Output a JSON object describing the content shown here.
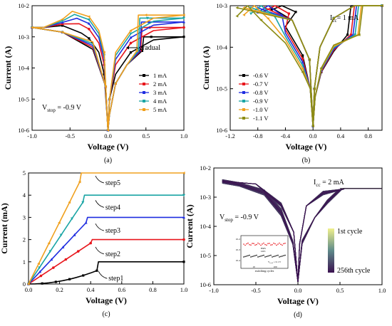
{
  "colors": {
    "1 mA": "#000000",
    "2 mA": "#e8151b",
    "3 mA": "#1f2de0",
    "4 mA": "#1aa5a5",
    "5 mA": "#f0a01e",
    "-0.6 V": "#000000",
    "-0.7 V": "#e8151b",
    "-0.8 V": "#1f2de0",
    "-0.9 V": "#1aa5a5",
    "-1.0 V": "#f0a01e",
    "-1.1 V": "#8c8c14",
    "viridis_start": "#f0f08c",
    "viridis_mid": "#5f8a8a",
    "viridis_end": "#3b1250"
  },
  "chart_data": [
    {
      "panel": "a",
      "type": "line",
      "caption": "(a)",
      "xlabel": "Voltage (V)",
      "ylabel": "Current (A)",
      "xlim": [
        -1.0,
        1.0
      ],
      "ylim_log10": [
        -6,
        -2
      ],
      "yscale": "log",
      "x_ticks": [
        "-1.0",
        "-0.5",
        "0.0",
        "0.5",
        "1.0"
      ],
      "y_ticks": [
        "10-6",
        "10-5",
        "10-4",
        "10-3",
        "10-2"
      ],
      "annotations": {
        "vstop": "V",
        "vstop_sub": "stop",
        "vstop_val": " = -0.9 V",
        "gradual": "gradual"
      },
      "legend_position": "lower-right",
      "series": [
        {
          "name": "1 mA",
          "compliance": 0.001,
          "set_v": 0.47
        },
        {
          "name": "2 mA",
          "compliance": 0.002,
          "set_v": 0.45
        },
        {
          "name": "3 mA",
          "compliance": 0.003,
          "set_v": 0.44
        },
        {
          "name": "4 mA",
          "compliance": 0.004,
          "set_v": 0.42
        },
        {
          "name": "5 mA",
          "compliance": 0.005,
          "set_v": 0.4
        }
      ]
    },
    {
      "panel": "b",
      "type": "line",
      "caption": "(b)",
      "xlabel": "Voltage (V)",
      "ylabel": "Current (A)",
      "xlim": [
        -1.2,
        1.0
      ],
      "ylim_log10": [
        -6,
        -3
      ],
      "yscale": "log",
      "x_ticks": [
        "-1.2",
        "-0.8",
        "-0.4",
        "0.0",
        "0.4",
        "0.8"
      ],
      "y_ticks": [
        "10-6",
        "10-5",
        "10-4",
        "10-3"
      ],
      "annotations": {
        "icc": "I",
        "icc_sub": "cc",
        "icc_val": "= 1 mA"
      },
      "legend_position": "lower-left",
      "series": [
        {
          "name": "-0.6 V",
          "vstop": -0.6,
          "set_v": 0.55
        },
        {
          "name": "-0.7 V",
          "vstop": -0.7,
          "set_v": 0.6
        },
        {
          "name": "-0.8 V",
          "vstop": -0.8,
          "set_v": 0.63
        },
        {
          "name": "-0.9 V",
          "vstop": -0.9,
          "set_v": 0.66
        },
        {
          "name": "-1.0 V",
          "vstop": -1.0,
          "set_v": 0.7
        },
        {
          "name": "-1.1 V",
          "vstop": -1.1,
          "set_v": 0.72
        }
      ]
    },
    {
      "panel": "c",
      "type": "line",
      "caption": "(c)",
      "xlabel": "Voltage (V)",
      "ylabel": "Current (mA)",
      "xlim": [
        0.0,
        1.0
      ],
      "ylim": [
        0,
        5
      ],
      "yscale": "linear",
      "x_ticks": [
        "0.0",
        "0.2",
        "0.4",
        "0.6",
        "0.8",
        "1.0"
      ],
      "y_ticks": [
        "0",
        "1",
        "2",
        "3",
        "4",
        "5"
      ],
      "annotations": [
        "step1",
        "step2",
        "step3",
        "step4",
        "step5"
      ],
      "series": [
        {
          "name": "1 mA",
          "compliance": 1,
          "set_v": 0.44
        },
        {
          "name": "2 mA",
          "compliance": 2,
          "set_v": 0.4
        },
        {
          "name": "3 mA",
          "compliance": 3,
          "set_v": 0.37
        },
        {
          "name": "4 mA",
          "compliance": 4,
          "set_v": 0.35
        },
        {
          "name": "5 mA",
          "compliance": 5,
          "set_v": 0.33
        }
      ]
    },
    {
      "panel": "d",
      "type": "line",
      "caption": "(d)",
      "xlabel": "Voltage (V)",
      "ylabel": "Current (A)",
      "xlim": [
        -1.0,
        1.0
      ],
      "ylim_log10": [
        -6,
        -2
      ],
      "yscale": "log",
      "x_ticks": [
        "-1.0",
        "-0.5",
        "0.0",
        "0.5",
        "1.0"
      ],
      "y_ticks": [
        "10-6",
        "10-5",
        "10-4",
        "10-3",
        "10-2"
      ],
      "annotations": {
        "icc": "I",
        "icc_sub": "cc",
        "icc_val": " = 2 mA",
        "vstop": "V",
        "vstop_sub": "stop",
        "vstop_val": " = -0.9 V"
      },
      "colorbar": {
        "top_label": "1st cycle",
        "bottom_label": "256th cycle"
      },
      "cycles": 256,
      "inset": {
        "xlabel": "switching cycles",
        "legend": [
          "HRS",
          "LRS"
        ],
        "note": "V",
        "note_sub": "read",
        "note_val": " = 0.1 V",
        "x_ticks": [
          "10",
          "100"
        ],
        "y_ticks": [
          "10-2",
          "10-3",
          "10-4"
        ]
      }
    }
  ]
}
